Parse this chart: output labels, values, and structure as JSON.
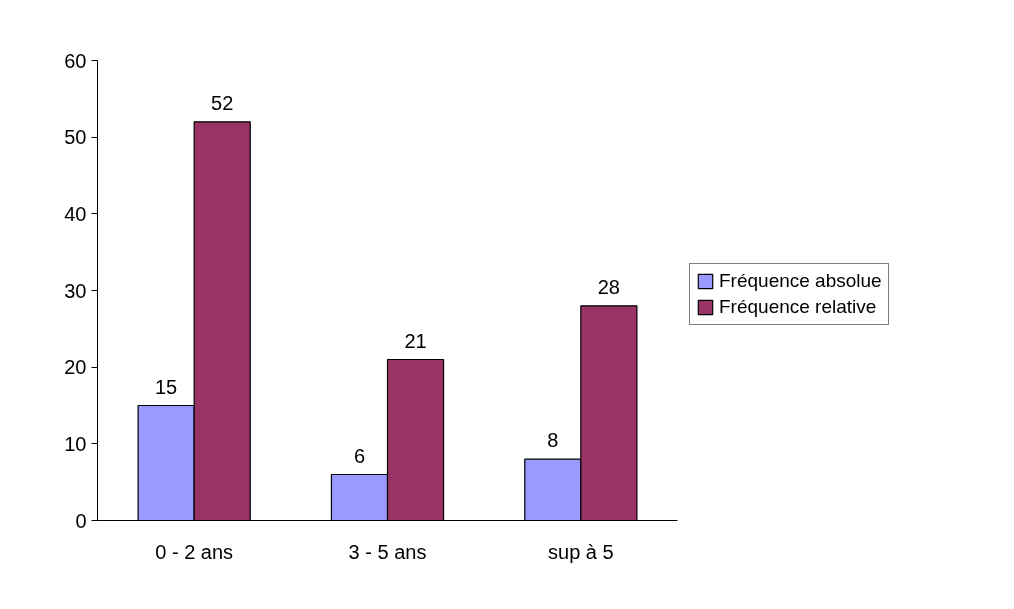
{
  "chart_data": {
    "type": "bar",
    "categories": [
      "0 - 2 ans",
      "3 - 5 ans",
      "sup à 5"
    ],
    "series": [
      {
        "name": "Fréquence absolue",
        "color": "#9999ff",
        "values": [
          15,
          6,
          8
        ]
      },
      {
        "name": "Fréquence relative",
        "color": "#993366",
        "values": [
          52,
          21,
          28
        ]
      }
    ],
    "ylim": [
      0,
      60
    ],
    "yticks": [
      0,
      10,
      20,
      30,
      40,
      50,
      60
    ],
    "grid": false,
    "legend": "right",
    "data_labels": true
  }
}
